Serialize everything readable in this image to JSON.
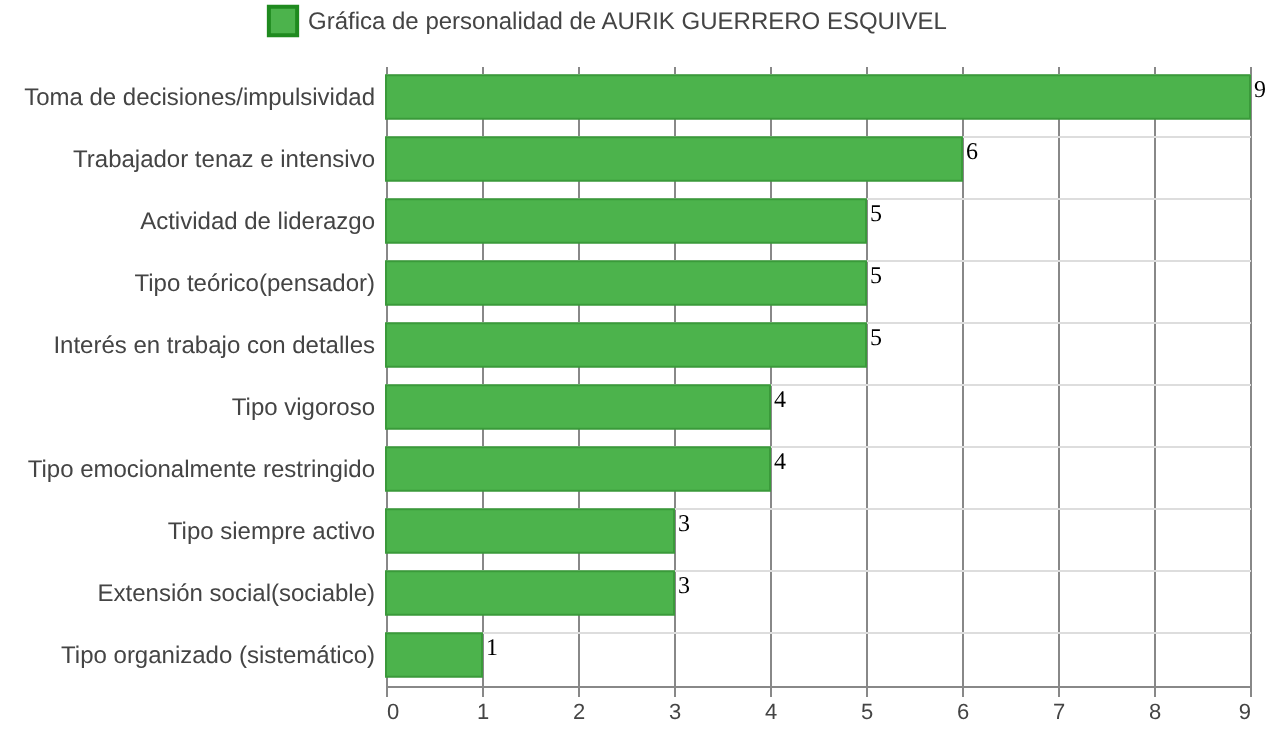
{
  "chart_data": {
    "type": "bar",
    "orientation": "horizontal",
    "categories": [
      "Toma de decisiones/impulsividad",
      "Trabajador tenaz e intensivo",
      "Actividad de liderazgo",
      "Tipo teórico(pensador)",
      "Interés en trabajo con detalles",
      "Tipo vigoroso",
      "Tipo emocionalmente restringido",
      "Tipo siempre activo",
      "Extensión social(sociable)",
      "Tipo organizado (sistemático)"
    ],
    "series": [
      {
        "name": "Gráfica de personalidad de AURIK GUERRERO ESQUIVEL",
        "color": "#4cb34c",
        "values": [
          9,
          6,
          5,
          5,
          5,
          4,
          4,
          3,
          3,
          1
        ]
      }
    ],
    "xlim": [
      0,
      9
    ],
    "xticks": [
      0,
      1,
      2,
      3,
      4,
      5,
      6,
      7,
      8,
      9
    ],
    "grid": true,
    "legend": "top",
    "data_labels": true
  }
}
